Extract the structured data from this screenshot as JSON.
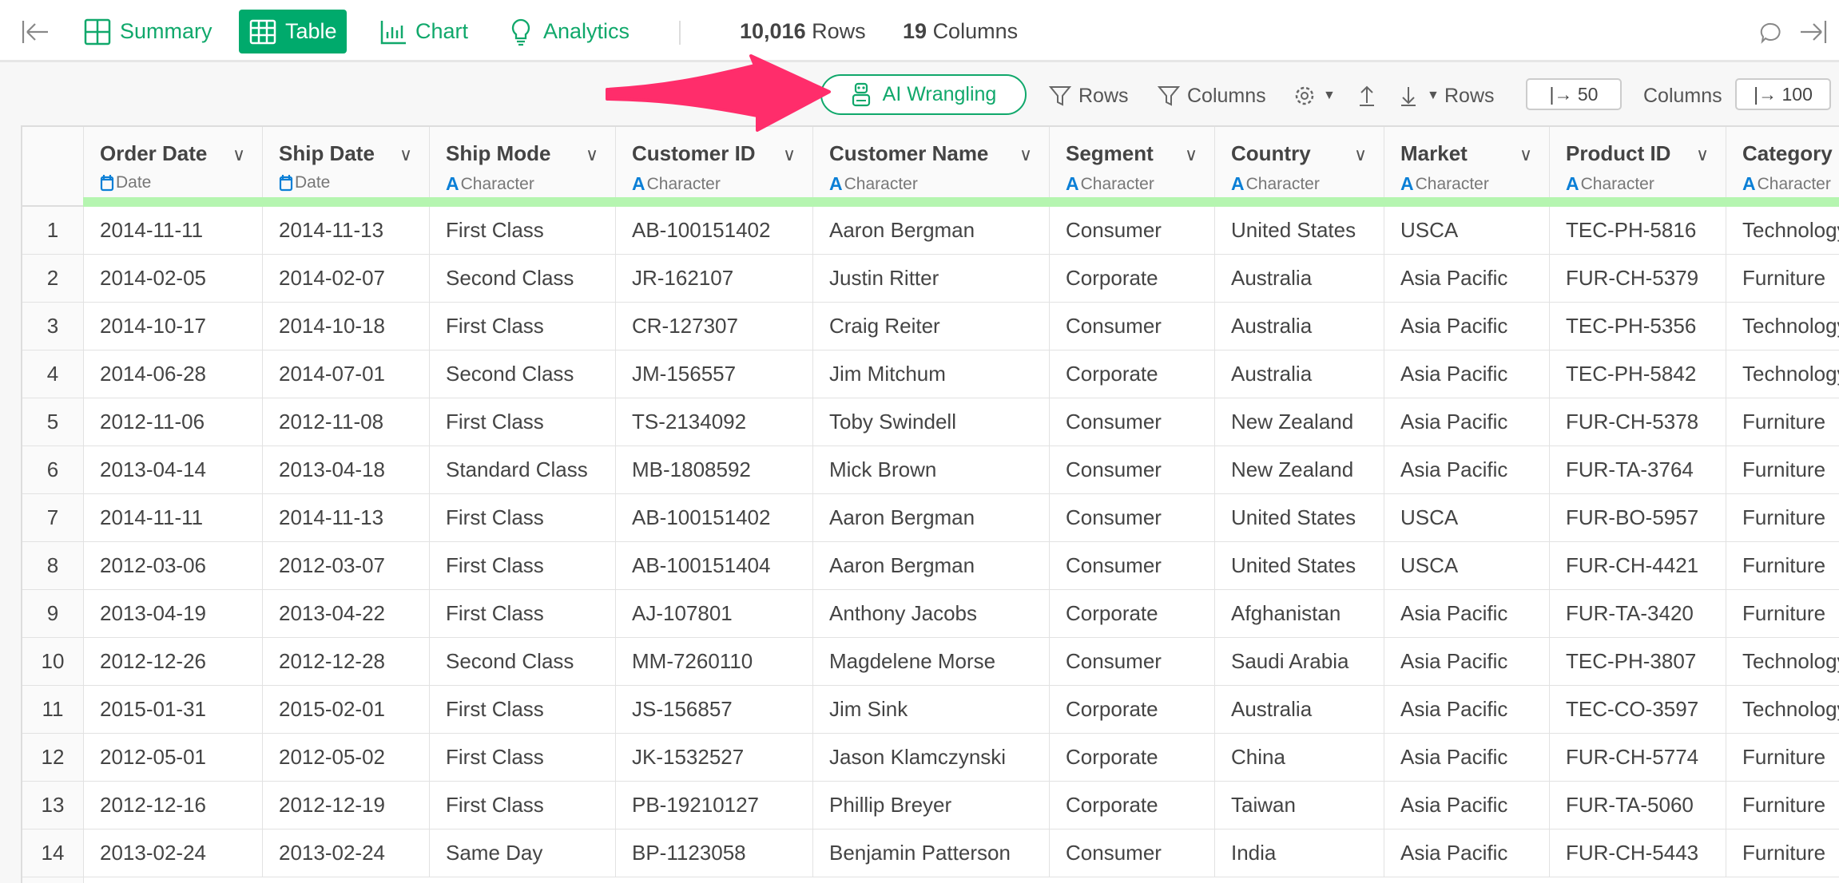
{
  "topbar": {
    "tabs": [
      {
        "label": "Summary",
        "icon": "summary-grid-icon"
      },
      {
        "label": "Table",
        "icon": "table-icon",
        "active": true
      },
      {
        "label": "Chart",
        "icon": "bar-chart-icon"
      },
      {
        "label": "Analytics",
        "icon": "lightbulb-icon"
      }
    ],
    "rows_count": "10,016",
    "rows_label": "Rows",
    "cols_count": "19",
    "cols_label": "Columns"
  },
  "toolbar": {
    "ai_label": "AI Wrangling",
    "filter_rows": "Rows",
    "filter_columns": "Columns",
    "rows_label": "Rows",
    "rows_value": "|→ 50",
    "columns_label": "Columns",
    "columns_value": "|→ 100"
  },
  "colors": {
    "accent": "#00aa6c",
    "arrow": "#ff2d6b",
    "type_strip": "#b5f5b0",
    "type_icon": "#0b7fd6"
  },
  "columns": [
    {
      "name": "Order Date",
      "type": "Date"
    },
    {
      "name": "Ship Date",
      "type": "Date"
    },
    {
      "name": "Ship Mode",
      "type": "Character"
    },
    {
      "name": "Customer ID",
      "type": "Character"
    },
    {
      "name": "Customer Name",
      "type": "Character"
    },
    {
      "name": "Segment",
      "type": "Character"
    },
    {
      "name": "Country",
      "type": "Character"
    },
    {
      "name": "Market",
      "type": "Character"
    },
    {
      "name": "Product ID",
      "type": "Character"
    },
    {
      "name": "Category",
      "type": "Character"
    }
  ],
  "rows": [
    [
      "1",
      "2014-11-11",
      "2014-11-13",
      "First Class",
      "AB-100151402",
      "Aaron Bergman",
      "Consumer",
      "United States",
      "USCA",
      "TEC-PH-5816",
      "Technology"
    ],
    [
      "2",
      "2014-02-05",
      "2014-02-07",
      "Second Class",
      "JR-162107",
      "Justin Ritter",
      "Corporate",
      "Australia",
      "Asia Pacific",
      "FUR-CH-5379",
      "Furniture"
    ],
    [
      "3",
      "2014-10-17",
      "2014-10-18",
      "First Class",
      "CR-127307",
      "Craig Reiter",
      "Consumer",
      "Australia",
      "Asia Pacific",
      "TEC-PH-5356",
      "Technology"
    ],
    [
      "4",
      "2014-06-28",
      "2014-07-01",
      "Second Class",
      "JM-156557",
      "Jim Mitchum",
      "Corporate",
      "Australia",
      "Asia Pacific",
      "TEC-PH-5842",
      "Technology"
    ],
    [
      "5",
      "2012-11-06",
      "2012-11-08",
      "First Class",
      "TS-2134092",
      "Toby Swindell",
      "Consumer",
      "New Zealand",
      "Asia Pacific",
      "FUR-CH-5378",
      "Furniture"
    ],
    [
      "6",
      "2013-04-14",
      "2013-04-18",
      "Standard Class",
      "MB-1808592",
      "Mick Brown",
      "Consumer",
      "New Zealand",
      "Asia Pacific",
      "FUR-TA-3764",
      "Furniture"
    ],
    [
      "7",
      "2014-11-11",
      "2014-11-13",
      "First Class",
      "AB-100151402",
      "Aaron Bergman",
      "Consumer",
      "United States",
      "USCA",
      "FUR-BO-5957",
      "Furniture"
    ],
    [
      "8",
      "2012-03-06",
      "2012-03-07",
      "First Class",
      "AB-100151404",
      "Aaron Bergman",
      "Consumer",
      "United States",
      "USCA",
      "FUR-CH-4421",
      "Furniture"
    ],
    [
      "9",
      "2013-04-19",
      "2013-04-22",
      "First Class",
      "AJ-107801",
      "Anthony Jacobs",
      "Corporate",
      "Afghanistan",
      "Asia Pacific",
      "FUR-TA-3420",
      "Furniture"
    ],
    [
      "10",
      "2012-12-26",
      "2012-12-28",
      "Second Class",
      "MM-7260110",
      "Magdelene Morse",
      "Consumer",
      "Saudi Arabia",
      "Asia Pacific",
      "TEC-PH-3807",
      "Technology"
    ],
    [
      "11",
      "2015-01-31",
      "2015-02-01",
      "First Class",
      "JS-156857",
      "Jim Sink",
      "Corporate",
      "Australia",
      "Asia Pacific",
      "TEC-CO-3597",
      "Technology"
    ],
    [
      "12",
      "2012-05-01",
      "2012-05-02",
      "First Class",
      "JK-1532527",
      "Jason Klamczynski",
      "Corporate",
      "China",
      "Asia Pacific",
      "FUR-CH-5774",
      "Furniture"
    ],
    [
      "13",
      "2012-12-16",
      "2012-12-19",
      "First Class",
      "PB-19210127",
      "Phillip Breyer",
      "Corporate",
      "Taiwan",
      "Asia Pacific",
      "FUR-TA-5060",
      "Furniture"
    ],
    [
      "14",
      "2013-02-24",
      "2013-02-24",
      "Same Day",
      "BP-1123058",
      "Benjamin Patterson",
      "Consumer",
      "India",
      "Asia Pacific",
      "FUR-CH-5443",
      "Furniture"
    ]
  ]
}
